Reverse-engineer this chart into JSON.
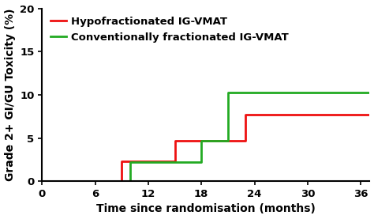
{
  "title": "",
  "xlabel": "Time since randomisation (months)",
  "ylabel": "Grade 2+ GI/GU Toxicity (%)",
  "xlim": [
    0,
    37
  ],
  "ylim": [
    0,
    20
  ],
  "xticks": [
    0,
    6,
    12,
    18,
    24,
    30,
    36
  ],
  "yticks": [
    0,
    5,
    10,
    15,
    20
  ],
  "red_line": {
    "label": "Hypofractionated IG-VMAT",
    "color": "#EE1111",
    "x": [
      0,
      9,
      9,
      15,
      15,
      18,
      18,
      23,
      23,
      37
    ],
    "y": [
      0,
      0,
      2.3,
      2.3,
      4.7,
      4.7,
      4.7,
      4.7,
      7.7,
      7.7
    ]
  },
  "green_line": {
    "label": "Conventionally fractionated IG-VMAT",
    "color": "#22AA22",
    "x": [
      0,
      10,
      10,
      18,
      18,
      21,
      21,
      37
    ],
    "y": [
      0,
      0,
      2.2,
      2.2,
      4.7,
      4.7,
      10.3,
      10.3
    ]
  },
  "legend_fontsize": 9.5,
  "axis_label_fontsize": 10,
  "tick_fontsize": 9.5,
  "linewidth": 2.0,
  "background_color": "#ffffff"
}
